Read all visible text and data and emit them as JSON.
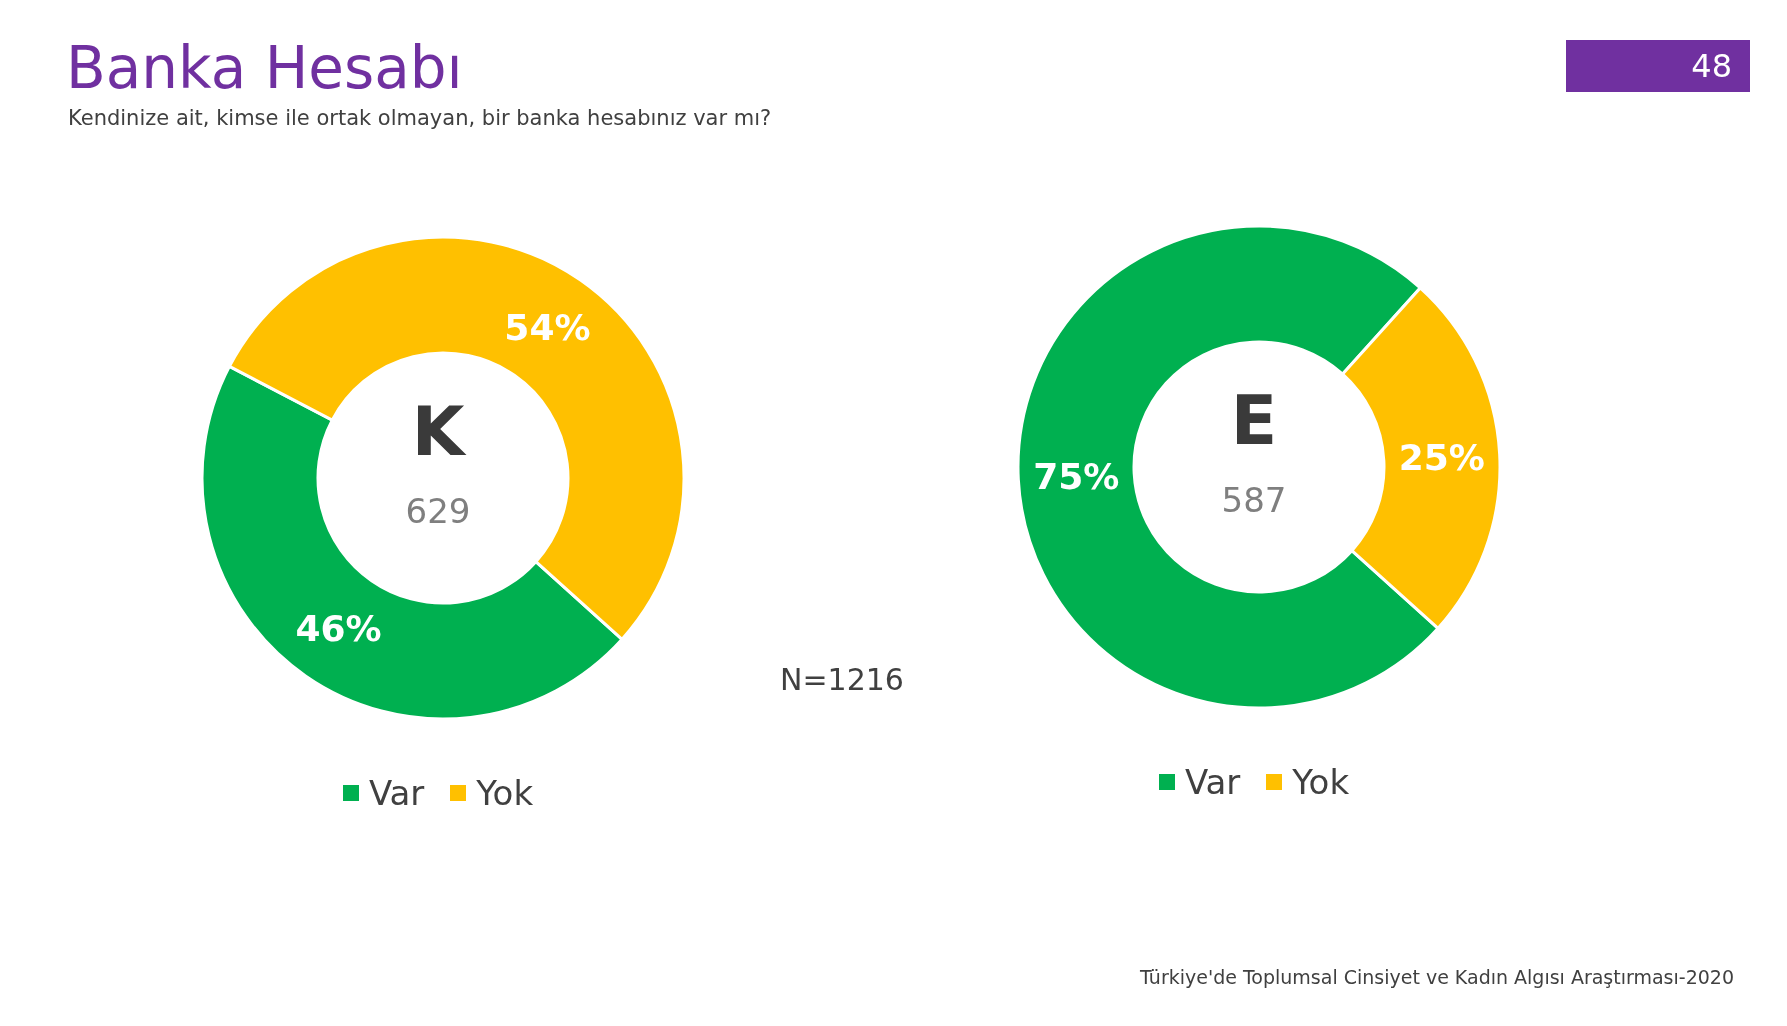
{
  "chart_data": [
    {
      "type": "donut",
      "title": "Banka Hesabı",
      "subtitle": "Kendinize ait, kimse ile ortak olmayan, bir banka hesabınız var mı?",
      "categories": [
        "Var",
        "Yok"
      ],
      "values": [
        46,
        54
      ],
      "value_labels": [
        "46%",
        "54%"
      ],
      "colors": [
        "#00b050",
        "#ffc000"
      ],
      "legend": "bottom",
      "annotations": [
        "K",
        "629",
        "N=1216",
        "48"
      ]
    },
    {
      "type": "donut",
      "categories": [
        "Var",
        "Yok"
      ],
      "values": [
        75,
        25
      ],
      "value_labels": [
        "75%",
        "25%"
      ],
      "colors": [
        "#00b050",
        "#ffc000"
      ],
      "legend": "bottom",
      "annotations": [
        "E",
        "587",
        "Türkiye'de Toplumsal Cinsiyet ve Kadın Algısı Araştırması-2020"
      ]
    }
  ]
}
